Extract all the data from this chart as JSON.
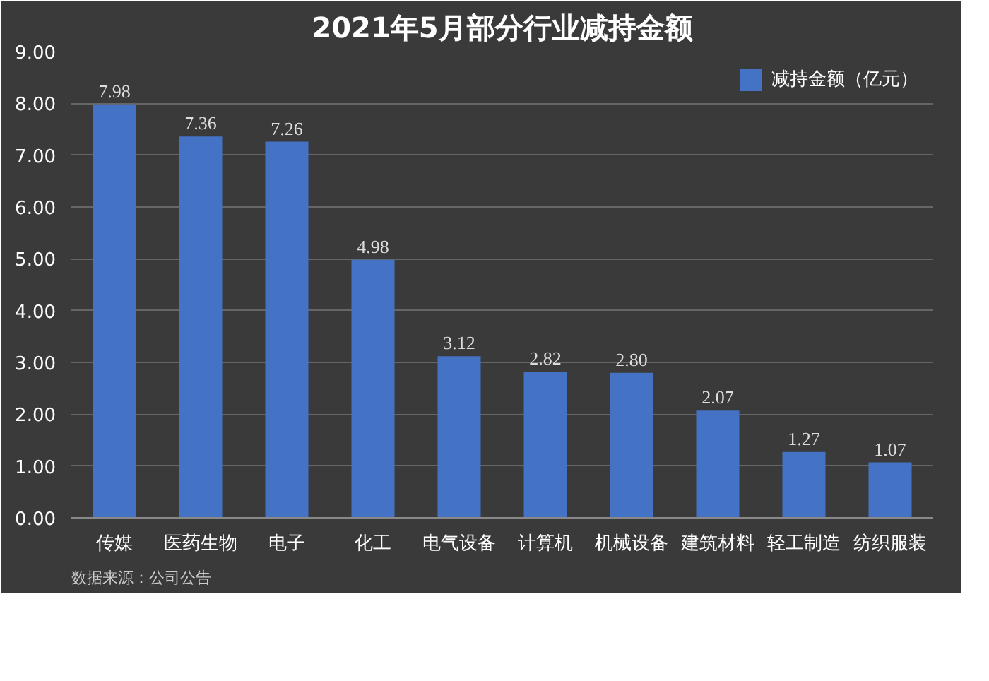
{
  "chart_data": {
    "type": "bar",
    "title": "2021年5月部分行业减持金额",
    "categories": [
      "传媒",
      "医药生物",
      "电子",
      "化工",
      "电气设备",
      "计算机",
      "机械设备",
      "建筑材料",
      "轻工制造",
      "纺织服装"
    ],
    "series": [
      {
        "name": "减持金额（亿元）",
        "color": "#4472c4",
        "values": [
          7.98,
          7.36,
          7.26,
          4.98,
          3.12,
          2.82,
          2.8,
          2.07,
          1.27,
          1.07
        ],
        "value_labels": [
          "7.98",
          "7.36",
          "7.26",
          "4.98",
          "3.12",
          "2.82",
          "2.80",
          "2.07",
          "1.27",
          "1.07"
        ]
      }
    ],
    "ylim": [
      0,
      9
    ],
    "yticks": [
      {
        "value": 0,
        "label": "0.00"
      },
      {
        "value": 1,
        "label": "1.00"
      },
      {
        "value": 2,
        "label": "2.00"
      },
      {
        "value": 3,
        "label": "3.00"
      },
      {
        "value": 4,
        "label": "4.00"
      },
      {
        "value": 5,
        "label": "5.00"
      },
      {
        "value": 6,
        "label": "6.00"
      },
      {
        "value": 7,
        "label": "7.00"
      },
      {
        "value": 8,
        "label": "8.00"
      },
      {
        "value": 9,
        "label": "9.00"
      }
    ],
    "grid": "y",
    "legend": "top right",
    "annotations": [
      "数据来源：公司公告"
    ]
  }
}
